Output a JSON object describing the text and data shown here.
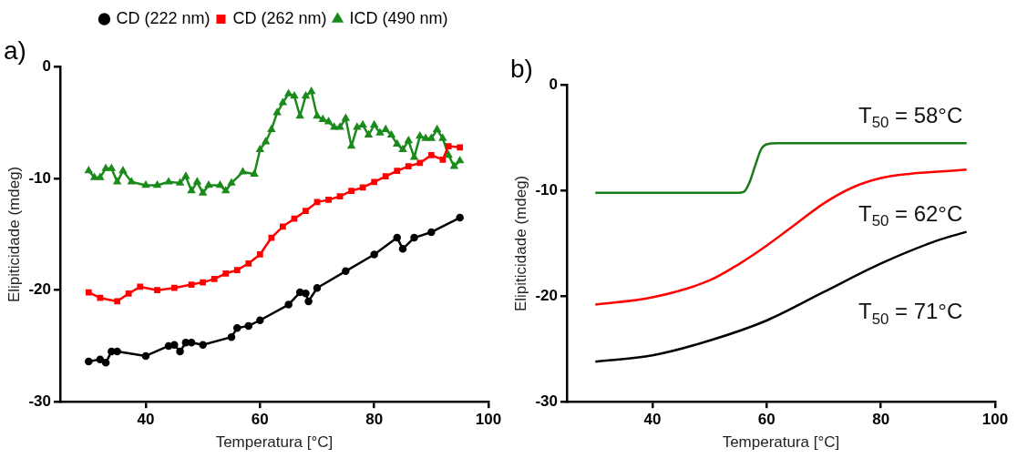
{
  "chart_data": [
    {
      "type": "line",
      "title": "a)",
      "xlabel": "Temperatura [°C]",
      "ylabel": "Elipiticidade (mdeg)",
      "xlim": [
        25,
        100
      ],
      "xticks": [
        40,
        60,
        80,
        100
      ],
      "ylim": [
        -30,
        0
      ],
      "yticks": [
        -30,
        -20,
        -10,
        0
      ],
      "grid": false,
      "legend": "top",
      "series": [
        {
          "name": "CD (222 nm)",
          "color": "#000000",
          "marker": "circle",
          "x": [
            30,
            32,
            33,
            34,
            35,
            40,
            44,
            45,
            46,
            47,
            48,
            50,
            55,
            56,
            58,
            60,
            65,
            67,
            68,
            68.5,
            70,
            75,
            80,
            84,
            85,
            87,
            90,
            95
          ],
          "values": [
            -26.4,
            -26.2,
            -26.5,
            -25.5,
            -25.5,
            -25.9,
            -25.0,
            -24.9,
            -25.5,
            -24.7,
            -24.7,
            -24.9,
            -24.2,
            -23.4,
            -23.2,
            -22.7,
            -21.3,
            -20.2,
            -20.3,
            -21.0,
            -19.8,
            -18.3,
            -16.8,
            -15.3,
            -16.3,
            -15.3,
            -14.8,
            -13.5
          ]
        },
        {
          "name": "CD (262 nm)",
          "color": "#ff0000",
          "marker": "square",
          "x": [
            30,
            32,
            35,
            37,
            39,
            42,
            45,
            48,
            50,
            52,
            54,
            56,
            58,
            60,
            62,
            64,
            66,
            68,
            70,
            72,
            74,
            76,
            78,
            80,
            82,
            84,
            86,
            88,
            90,
            92,
            93,
            95
          ],
          "values": [
            -20.2,
            -20.7,
            -21.0,
            -20.3,
            -19.7,
            -20.0,
            -19.8,
            -19.5,
            -19.3,
            -19.0,
            -18.5,
            -18.2,
            -17.6,
            -16.8,
            -15.3,
            -14.3,
            -13.6,
            -12.9,
            -12.1,
            -11.9,
            -11.6,
            -11.1,
            -10.8,
            -10.3,
            -9.8,
            -9.3,
            -8.9,
            -8.6,
            -7.9,
            -8.3,
            -7.1,
            -7.2
          ]
        },
        {
          "name": "ICD (490 nm)",
          "color": "#1a8a1a",
          "marker": "triangle",
          "x": [
            30,
            31,
            32,
            33,
            34,
            35,
            36,
            37.5,
            40,
            42,
            44,
            46,
            47,
            48,
            49,
            50,
            51,
            53,
            54,
            55,
            57,
            59,
            60,
            61,
            62,
            63,
            64,
            65,
            66,
            67,
            68,
            69,
            70,
            71,
            72,
            73,
            74,
            75,
            76,
            77,
            78,
            79,
            80,
            81,
            82,
            83,
            84,
            85,
            86,
            87,
            88,
            89,
            90,
            91,
            92,
            93,
            94,
            95
          ],
          "values": [
            -9.3,
            -9.9,
            -9.9,
            -9.1,
            -9.1,
            -10.3,
            -9.3,
            -10.3,
            -10.6,
            -10.6,
            -10.3,
            -10.4,
            -9.8,
            -11.1,
            -10.3,
            -11.3,
            -10.6,
            -10.6,
            -11.1,
            -10.4,
            -9.4,
            -9.6,
            -7.4,
            -6.7,
            -5.6,
            -4.1,
            -3.2,
            -2.4,
            -2.6,
            -4.4,
            -2.6,
            -2.2,
            -4.4,
            -4.7,
            -4.9,
            -5.4,
            -5.4,
            -4.6,
            -7.1,
            -5.4,
            -5.2,
            -6.1,
            -5.2,
            -5.9,
            -5.6,
            -6.1,
            -6.9,
            -7.4,
            -6.6,
            -8.1,
            -6.2,
            -6.4,
            -6.4,
            -5.6,
            -6.4,
            -7.9,
            -8.9,
            -8.4
          ]
        }
      ]
    },
    {
      "type": "line",
      "title": "b)",
      "xlabel": "Temperatura [°C]",
      "ylabel": "Elipiticidade (mdeg)",
      "xlim": [
        25,
        100
      ],
      "xticks": [
        40,
        60,
        80,
        100
      ],
      "ylim": [
        -30,
        0
      ],
      "yticks": [
        -30,
        -20,
        -10,
        0
      ],
      "grid": false,
      "legend": false,
      "marker": "none",
      "annotations": [
        "T$_{50}$ = 58°C",
        "T$_{50}$ = 62°C",
        "T$_{50}$ = 71°C"
      ],
      "series": [
        {
          "color": "#1a7a1a",
          "x": [
            30,
            40,
            50,
            55,
            56,
            57,
            58,
            59,
            60,
            62,
            70,
            80,
            95
          ],
          "values": [
            -10.2,
            -10.2,
            -10.2,
            -10.2,
            -10.1,
            -9.2,
            -7.6,
            -6.1,
            -5.6,
            -5.5,
            -5.5,
            -5.5,
            -5.5
          ]
        },
        {
          "color": "#ff0000",
          "x": [
            30,
            40,
            50,
            55,
            60,
            65,
            70,
            75,
            80,
            85,
            90,
            95
          ],
          "values": [
            -20.8,
            -20.1,
            -18.5,
            -17.0,
            -15.2,
            -13.2,
            -11.2,
            -9.7,
            -8.8,
            -8.4,
            -8.2,
            -8.0
          ]
        },
        {
          "color": "#000000",
          "x": [
            30,
            40,
            50,
            60,
            70,
            80,
            90,
            95
          ],
          "values": [
            -26.2,
            -25.6,
            -24.2,
            -22.3,
            -19.6,
            -16.9,
            -14.7,
            -13.9
          ]
        }
      ]
    }
  ]
}
